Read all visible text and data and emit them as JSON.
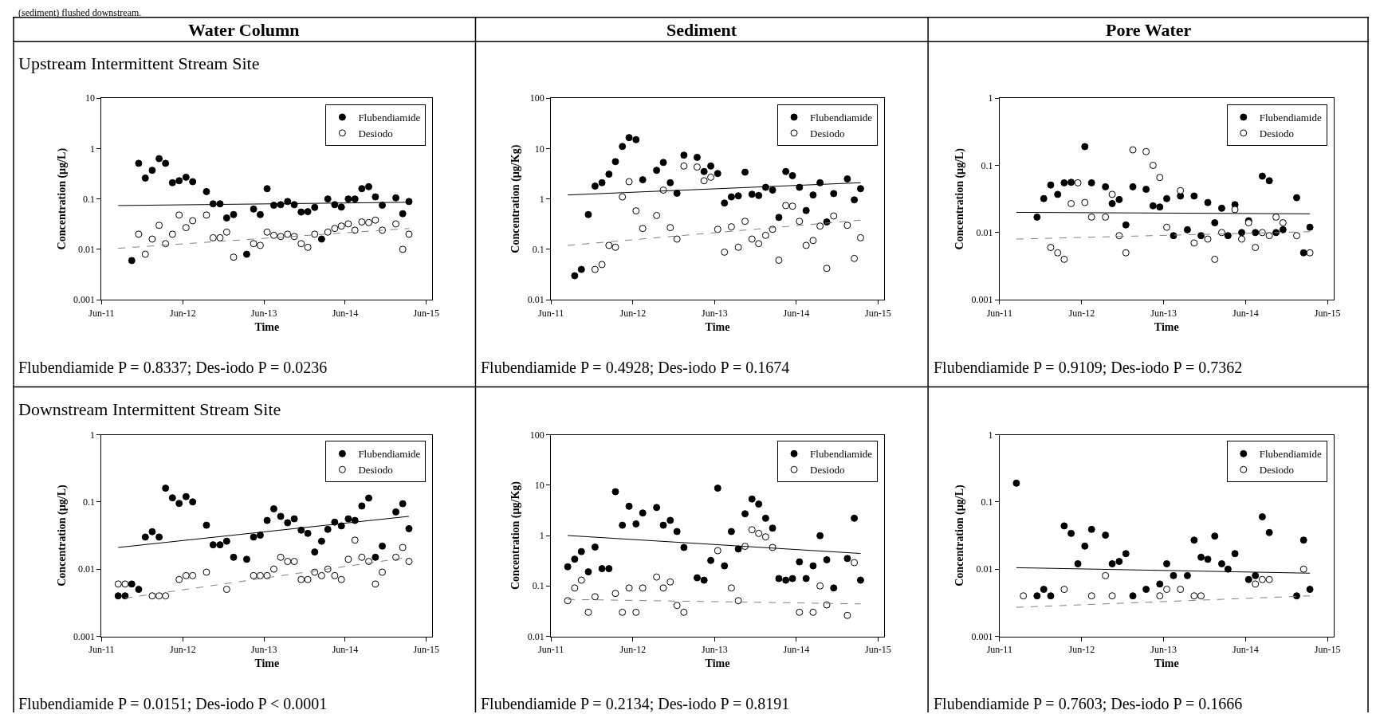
{
  "chart_data": [
    {
      "type": "scatter",
      "title": "Water Column",
      "subtitle": "Upstream Intermittent Stream Site",
      "xlabel": "Time",
      "ylabel": "Concentration (µg/L)",
      "log": "y",
      "legend": "top right",
      "marker": "circle",
      "xlim": [
        "2011-06-01",
        "2015-06-28"
      ],
      "xticks": [
        {
          "value": "2011-06-01",
          "label": "Jun-11"
        },
        {
          "value": "2012-06-01",
          "label": "Jun-12"
        },
        {
          "value": "2013-06-01",
          "label": "Jun-13"
        },
        {
          "value": "2014-06-01",
          "label": "Jun-14"
        },
        {
          "value": "2015-06-01",
          "label": "Jun-15"
        }
      ],
      "ylim": [
        0.001,
        10
      ],
      "yticks": [
        0.001,
        0.01,
        0.1,
        1,
        10
      ],
      "series": [
        {
          "name": "Flubendiamide",
          "color": "#000000",
          "x": [
            "2011-10-15",
            "2011-11-15",
            "2011-12-15",
            "2012-01-15",
            "2012-02-15",
            "2012-03-15",
            "2012-04-15",
            "2012-05-15",
            "2012-06-15",
            "2012-07-15",
            "2012-09-15",
            "2012-10-15",
            "2012-11-15",
            "2012-12-15",
            "2013-01-15",
            "2013-03-15",
            "2013-04-15",
            "2013-05-15",
            "2013-06-15",
            "2013-07-15",
            "2013-08-15",
            "2013-09-15",
            "2013-10-15",
            "2013-11-15",
            "2013-12-15",
            "2014-01-15",
            "2014-02-15",
            "2014-03-15",
            "2014-04-15",
            "2014-05-15",
            "2014-06-15",
            "2014-07-15",
            "2014-08-15",
            "2014-09-15",
            "2014-10-15",
            "2014-11-15",
            "2015-01-15",
            "2015-02-15",
            "2015-03-15"
          ],
          "values": [
            0.006,
            0.51,
            0.26,
            0.37,
            0.63,
            0.51,
            0.21,
            0.23,
            0.27,
            0.22,
            0.14,
            0.08,
            0.08,
            0.042,
            0.049,
            0.008,
            0.063,
            0.049,
            0.16,
            0.075,
            0.077,
            0.089,
            0.077,
            0.055,
            0.056,
            0.068,
            0.016,
            0.1,
            0.077,
            0.069,
            0.1,
            0.1,
            0.16,
            0.175,
            0.11,
            0.075,
            0.105,
            0.051,
            0.089
          ]
        },
        {
          "name": "Desiodo",
          "color": "#ffffff",
          "x": [
            "2011-11-15",
            "2011-12-15",
            "2012-01-15",
            "2012-02-15",
            "2012-03-15",
            "2012-04-15",
            "2012-05-15",
            "2012-06-15",
            "2012-07-15",
            "2012-09-15",
            "2012-10-15",
            "2012-11-15",
            "2012-12-15",
            "2013-01-15",
            "2013-04-15",
            "2013-05-15",
            "2013-06-15",
            "2013-07-15",
            "2013-08-15",
            "2013-09-15",
            "2013-10-15",
            "2013-11-15",
            "2013-12-15",
            "2014-01-15",
            "2014-03-15",
            "2014-04-15",
            "2014-05-15",
            "2014-06-15",
            "2014-07-15",
            "2014-08-15",
            "2014-09-15",
            "2014-10-15",
            "2014-11-15",
            "2015-01-15",
            "2015-02-15",
            "2015-03-15"
          ],
          "values": [
            0.02,
            0.008,
            0.016,
            0.03,
            0.013,
            0.02,
            0.048,
            0.027,
            0.037,
            0.048,
            0.017,
            0.017,
            0.022,
            0.007,
            0.013,
            0.012,
            0.022,
            0.019,
            0.018,
            0.02,
            0.018,
            0.013,
            0.011,
            0.02,
            0.022,
            0.026,
            0.029,
            0.032,
            0.024,
            0.035,
            0.034,
            0.038,
            0.024,
            0.032,
            0.01,
            0.02
          ]
        },
        {
          "type": "line",
          "color": "#000000",
          "x": [
            "2011-08-15",
            "2015-03-15"
          ],
          "values": [
            0.074,
            0.086
          ],
          "marker": "none"
        },
        {
          "type": "line",
          "color": "#808080",
          "line_style": "dashed",
          "x": [
            "2011-08-15",
            "2015-03-15"
          ],
          "values": [
            0.0105,
            0.026
          ],
          "marker": "none"
        }
      ],
      "annotations": [
        "(sediment) flushed downstream.",
        "Flubendiamide P = 0.8337; Des-iodo P = 0.0236"
      ]
    },
    {
      "type": "scatter",
      "title": "Sediment",
      "xlabel": "Time",
      "ylabel": "Concentration (µg/Kg)",
      "log": "y",
      "legend": "top right",
      "marker": "circle",
      "xlim": [
        "2011-06-01",
        "2015-06-28"
      ],
      "xticks": [
        {
          "value": "2011-06-01",
          "label": "Jun-11"
        },
        {
          "value": "2012-06-01",
          "label": "Jun-12"
        },
        {
          "value": "2013-06-01",
          "label": "Jun-13"
        },
        {
          "value": "2014-06-01",
          "label": "Jun-14"
        },
        {
          "value": "2015-06-01",
          "label": "Jun-15"
        }
      ],
      "ylim": [
        0.01,
        100
      ],
      "yticks": [
        0.01,
        0.1,
        1,
        10,
        100
      ],
      "series": [
        {
          "name": "Flubendiamide",
          "color": "#000000",
          "x": [
            "2011-09-15",
            "2011-10-15",
            "2011-11-15",
            "2011-12-15",
            "2012-01-15",
            "2012-02-15",
            "2012-03-15",
            "2012-04-15",
            "2012-05-15",
            "2012-06-15",
            "2012-07-15",
            "2012-09-15",
            "2012-10-15",
            "2012-11-15",
            "2012-12-15",
            "2013-01-15",
            "2013-03-15",
            "2013-04-15",
            "2013-05-15",
            "2013-06-15",
            "2013-07-15",
            "2013-08-15",
            "2013-09-15",
            "2013-10-15",
            "2013-11-15",
            "2013-12-15",
            "2014-01-15",
            "2014-02-15",
            "2014-03-15",
            "2014-04-15",
            "2014-05-15",
            "2014-06-15",
            "2014-07-15",
            "2014-08-15",
            "2014-09-15",
            "2014-10-15",
            "2014-11-15",
            "2015-01-15",
            "2015-02-15",
            "2015-03-15"
          ],
          "values": [
            0.03,
            0.04,
            0.49,
            1.8,
            2.1,
            3.1,
            5.5,
            11,
            16.5,
            15,
            2.4,
            3.7,
            5.3,
            2.1,
            1.3,
            7.4,
            6.7,
            3.5,
            4.5,
            3.2,
            0.83,
            1.1,
            1.15,
            3.4,
            1.24,
            1.17,
            1.7,
            1.5,
            0.43,
            3.5,
            2.9,
            1.7,
            0.59,
            1.2,
            2.1,
            0.35,
            1.28,
            2.5,
            0.96,
            1.6
          ]
        },
        {
          "name": "Desiodo",
          "color": "#ffffff",
          "x": [
            "2011-12-15",
            "2012-01-15",
            "2012-02-15",
            "2012-03-15",
            "2012-04-15",
            "2012-05-15",
            "2012-06-15",
            "2012-07-15",
            "2012-09-15",
            "2012-10-15",
            "2012-11-15",
            "2012-12-15",
            "2013-01-15",
            "2013-03-15",
            "2013-04-15",
            "2013-05-15",
            "2013-06-15",
            "2013-07-15",
            "2013-08-15",
            "2013-09-15",
            "2013-10-15",
            "2013-11-15",
            "2013-12-15",
            "2014-01-15",
            "2014-02-15",
            "2014-03-15",
            "2014-04-15",
            "2014-05-15",
            "2014-06-15",
            "2014-07-15",
            "2014-08-15",
            "2014-09-15",
            "2014-10-15",
            "2014-11-15",
            "2015-01-15",
            "2015-02-15",
            "2015-03-15"
          ],
          "values": [
            0.04,
            0.05,
            0.12,
            0.11,
            1.1,
            2.2,
            0.58,
            0.26,
            0.47,
            1.5,
            0.27,
            0.16,
            4.5,
            4.3,
            2.3,
            2.7,
            0.25,
            0.088,
            0.28,
            0.11,
            0.36,
            0.16,
            0.13,
            0.19,
            0.25,
            0.061,
            0.74,
            0.72,
            0.36,
            0.12,
            0.15,
            0.29,
            0.042,
            0.46,
            0.3,
            0.066,
            0.17
          ]
        },
        {
          "type": "line",
          "color": "#000000",
          "x": [
            "2011-08-15",
            "2015-03-15"
          ],
          "values": [
            1.2,
            2.1
          ],
          "marker": "none"
        },
        {
          "type": "line",
          "color": "#808080",
          "line_style": "dashed",
          "x": [
            "2011-08-15",
            "2015-03-15"
          ],
          "values": [
            0.12,
            0.38
          ],
          "marker": "none"
        }
      ],
      "annotations": [
        "Flubendiamide P = 0.4928; Des-iodo P = 0.1674"
      ]
    },
    {
      "type": "scatter",
      "title": "Pore Water",
      "xlabel": "Time",
      "ylabel": "Concentration (µg/L)",
      "log": "y",
      "legend": "top right",
      "marker": "circle",
      "xlim": [
        "2011-06-01",
        "2015-06-28"
      ],
      "xticks": [
        {
          "value": "2011-06-01",
          "label": "Jun-11"
        },
        {
          "value": "2012-06-01",
          "label": "Jun-12"
        },
        {
          "value": "2013-06-01",
          "label": "Jun-13"
        },
        {
          "value": "2014-06-01",
          "label": "Jun-14"
        },
        {
          "value": "2015-06-01",
          "label": "Jun-15"
        }
      ],
      "ylim": [
        0.001,
        1
      ],
      "yticks": [
        0.001,
        0.01,
        0.1,
        1
      ],
      "series": [
        {
          "name": "Flubendiamide",
          "color": "#000000",
          "x": [
            "2011-11-15",
            "2011-12-15",
            "2012-01-15",
            "2012-02-15",
            "2012-03-15",
            "2012-04-15",
            "2012-06-15",
            "2012-07-15",
            "2012-09-15",
            "2012-10-15",
            "2012-11-15",
            "2012-12-15",
            "2013-01-15",
            "2013-03-15",
            "2013-04-15",
            "2013-05-15",
            "2013-06-15",
            "2013-07-15",
            "2013-08-15",
            "2013-09-15",
            "2013-10-15",
            "2013-11-15",
            "2013-12-15",
            "2014-01-15",
            "2014-02-15",
            "2014-03-15",
            "2014-04-15",
            "2014-05-15",
            "2014-06-15",
            "2014-07-15",
            "2014-08-15",
            "2014-09-15",
            "2014-10-15",
            "2014-11-15",
            "2015-01-15",
            "2015-02-15",
            "2015-03-15"
          ],
          "values": [
            0.017,
            0.032,
            0.051,
            0.037,
            0.055,
            0.056,
            0.19,
            0.055,
            0.048,
            0.027,
            0.031,
            0.013,
            0.048,
            0.044,
            0.025,
            0.024,
            0.032,
            0.009,
            0.035,
            0.011,
            0.035,
            0.009,
            0.028,
            0.014,
            0.023,
            0.009,
            0.026,
            0.01,
            0.015,
            0.01,
            0.069,
            0.059,
            0.01,
            0.011,
            0.033,
            0.005,
            0.012
          ]
        },
        {
          "name": "Desiodo",
          "color": "#ffffff",
          "x": [
            "2012-01-15",
            "2012-02-15",
            "2012-03-15",
            "2012-04-15",
            "2012-05-15",
            "2012-06-15",
            "2012-07-15",
            "2012-09-15",
            "2012-10-15",
            "2012-11-15",
            "2012-12-15",
            "2013-01-15",
            "2013-03-15",
            "2013-04-15",
            "2013-05-15",
            "2013-06-15",
            "2013-08-15",
            "2013-10-15",
            "2013-12-15",
            "2014-01-15",
            "2014-02-15",
            "2014-04-15",
            "2014-05-15",
            "2014-06-15",
            "2014-07-15",
            "2014-08-15",
            "2014-09-15",
            "2014-10-15",
            "2014-11-15",
            "2015-01-15",
            "2015-03-15"
          ],
          "values": [
            0.006,
            0.005,
            0.004,
            0.027,
            0.055,
            0.028,
            0.017,
            0.017,
            0.037,
            0.009,
            0.005,
            0.17,
            0.16,
            0.1,
            0.066,
            0.012,
            0.042,
            0.007,
            0.008,
            0.004,
            0.01,
            0.022,
            0.008,
            0.014,
            0.006,
            0.01,
            0.009,
            0.017,
            0.014,
            0.009,
            0.005
          ]
        },
        {
          "type": "line",
          "color": "#000000",
          "x": [
            "2011-08-15",
            "2015-03-15"
          ],
          "values": [
            0.02,
            0.019
          ],
          "marker": "none"
        },
        {
          "type": "line",
          "color": "#808080",
          "line_style": "dashed",
          "x": [
            "2011-08-15",
            "2015-03-15"
          ],
          "values": [
            0.008,
            0.0103
          ],
          "marker": "none"
        }
      ],
      "annotations": [
        "Flubendiamide P = 0.9109; Des-iodo P = 0.7362"
      ]
    },
    {
      "type": "scatter",
      "subtitle": "Downstream Intermittent Stream Site",
      "xlabel": "Time",
      "ylabel": "Concentration (µg/L)",
      "log": "y",
      "legend": "top right",
      "marker": "circle",
      "xlim": [
        "2011-06-01",
        "2015-06-28"
      ],
      "xticks": [
        {
          "value": "2011-06-01",
          "label": "Jun-11"
        },
        {
          "value": "2012-06-01",
          "label": "Jun-12"
        },
        {
          "value": "2013-06-01",
          "label": "Jun-13"
        },
        {
          "value": "2014-06-01",
          "label": "Jun-14"
        },
        {
          "value": "2015-06-01",
          "label": "Jun-15"
        }
      ],
      "ylim": [
        0.001,
        1
      ],
      "yticks": [
        0.001,
        0.01,
        0.1,
        1
      ],
      "series": [
        {
          "name": "Flubendiamide",
          "color": "#000000",
          "x": [
            "2011-08-15",
            "2011-09-15",
            "2011-10-15",
            "2011-11-15",
            "2011-12-15",
            "2012-01-15",
            "2012-02-15",
            "2012-03-15",
            "2012-04-15",
            "2012-05-15",
            "2012-06-15",
            "2012-07-15",
            "2012-09-15",
            "2012-10-15",
            "2012-11-15",
            "2012-12-15",
            "2013-01-15",
            "2013-03-15",
            "2013-04-15",
            "2013-05-15",
            "2013-06-15",
            "2013-07-15",
            "2013-08-15",
            "2013-09-15",
            "2013-10-15",
            "2013-11-15",
            "2013-12-15",
            "2014-01-15",
            "2014-02-15",
            "2014-03-15",
            "2014-04-15",
            "2014-05-15",
            "2014-06-15",
            "2014-07-15",
            "2014-08-15",
            "2014-09-15",
            "2014-10-15",
            "2014-11-15",
            "2015-01-15",
            "2015-02-15",
            "2015-03-15"
          ],
          "values": [
            0.004,
            0.004,
            0.006,
            0.005,
            0.03,
            0.036,
            0.03,
            0.16,
            0.115,
            0.095,
            0.12,
            0.1,
            0.045,
            0.023,
            0.023,
            0.026,
            0.015,
            0.014,
            0.03,
            0.032,
            0.053,
            0.079,
            0.061,
            0.049,
            0.056,
            0.038,
            0.034,
            0.018,
            0.026,
            0.039,
            0.05,
            0.044,
            0.056,
            0.053,
            0.087,
            0.114,
            0.015,
            0.022,
            0.071,
            0.094,
            0.04
          ]
        },
        {
          "name": "Desiodo",
          "color": "#ffffff",
          "x": [
            "2011-08-15",
            "2011-09-15",
            "2012-01-15",
            "2012-02-15",
            "2012-03-15",
            "2012-05-15",
            "2012-06-15",
            "2012-07-15",
            "2012-09-15",
            "2012-12-15",
            "2013-04-15",
            "2013-05-15",
            "2013-06-15",
            "2013-07-15",
            "2013-08-15",
            "2013-09-15",
            "2013-10-15",
            "2013-11-15",
            "2013-12-15",
            "2014-01-15",
            "2014-02-15",
            "2014-03-15",
            "2014-04-15",
            "2014-05-15",
            "2014-06-15",
            "2014-07-15",
            "2014-08-15",
            "2014-09-15",
            "2014-10-15",
            "2014-11-15",
            "2015-01-15",
            "2015-02-15",
            "2015-03-15"
          ],
          "values": [
            0.006,
            0.006,
            0.004,
            0.004,
            0.004,
            0.007,
            0.008,
            0.008,
            0.009,
            0.005,
            0.008,
            0.008,
            0.008,
            0.01,
            0.015,
            0.013,
            0.013,
            0.007,
            0.007,
            0.009,
            0.008,
            0.01,
            0.008,
            0.007,
            0.014,
            0.027,
            0.015,
            0.013,
            0.006,
            0.009,
            0.015,
            0.021,
            0.013
          ]
        },
        {
          "type": "line",
          "color": "#000000",
          "x": [
            "2011-08-15",
            "2015-03-15"
          ],
          "values": [
            0.021,
            0.061
          ],
          "marker": "none"
        },
        {
          "type": "line",
          "color": "#808080",
          "line_style": "dashed",
          "x": [
            "2011-09-15",
            "2015-03-15"
          ],
          "values": [
            0.0037,
            0.015
          ],
          "marker": "none"
        }
      ],
      "annotations": [
        "Flubendiamide P = 0.0151; Des-iodo P < 0.0001"
      ]
    },
    {
      "type": "scatter",
      "xlabel": "Time",
      "ylabel": "Concentration (µg/Kg)",
      "log": "y",
      "legend": "top right",
      "marker": "circle",
      "xlim": [
        "2011-06-01",
        "2015-06-28"
      ],
      "xticks": [
        {
          "value": "2011-06-01",
          "label": "Jun-11"
        },
        {
          "value": "2012-06-01",
          "label": "Jun-12"
        },
        {
          "value": "2013-06-01",
          "label": "Jun-13"
        },
        {
          "value": "2014-06-01",
          "label": "Jun-14"
        },
        {
          "value": "2015-06-01",
          "label": "Jun-15"
        }
      ],
      "ylim": [
        0.01,
        100
      ],
      "yticks": [
        0.01,
        0.1,
        1,
        10,
        100
      ],
      "series": [
        {
          "name": "Flubendiamide",
          "color": "#000000",
          "x": [
            "2011-08-15",
            "2011-09-15",
            "2011-10-15",
            "2011-11-15",
            "2011-12-15",
            "2012-01-15",
            "2012-02-15",
            "2012-03-15",
            "2012-04-15",
            "2012-05-15",
            "2012-06-15",
            "2012-07-15",
            "2012-09-15",
            "2012-10-15",
            "2012-11-15",
            "2012-12-15",
            "2013-01-15",
            "2013-03-15",
            "2013-04-15",
            "2013-05-15",
            "2013-06-15",
            "2013-07-15",
            "2013-08-15",
            "2013-09-15",
            "2013-10-15",
            "2013-11-15",
            "2013-12-15",
            "2014-01-15",
            "2014-02-15",
            "2014-03-15",
            "2014-04-15",
            "2014-05-15",
            "2014-06-15",
            "2014-07-15",
            "2014-08-15",
            "2014-09-15",
            "2014-10-15",
            "2014-11-15",
            "2015-01-15",
            "2015-02-15",
            "2015-03-15"
          ],
          "values": [
            0.24,
            0.34,
            0.48,
            0.19,
            0.59,
            0.22,
            0.22,
            7.4,
            1.6,
            3.8,
            1.7,
            2.8,
            3.6,
            1.6,
            2.0,
            1.2,
            0.58,
            0.145,
            0.13,
            0.32,
            8.7,
            0.25,
            1.2,
            0.54,
            2.7,
            5.3,
            4.2,
            2.2,
            1.4,
            0.14,
            0.13,
            0.14,
            0.3,
            0.14,
            0.25,
            0.99,
            0.33,
            0.091,
            0.35,
            2.2,
            0.13
          ]
        },
        {
          "name": "Desiodo",
          "color": "#ffffff",
          "x": [
            "2011-08-15",
            "2011-09-15",
            "2011-10-15",
            "2011-11-15",
            "2011-12-15",
            "2012-03-15",
            "2012-04-15",
            "2012-05-15",
            "2012-06-15",
            "2012-07-15",
            "2012-09-15",
            "2012-10-15",
            "2012-11-15",
            "2012-12-15",
            "2013-01-15",
            "2013-06-15",
            "2013-08-15",
            "2013-09-15",
            "2013-10-15",
            "2013-11-15",
            "2013-12-15",
            "2014-01-15",
            "2014-02-15",
            "2014-06-15",
            "2014-08-15",
            "2014-09-15",
            "2014-10-15",
            "2015-01-15",
            "2015-02-15"
          ],
          "values": [
            0.051,
            0.091,
            0.13,
            0.03,
            0.061,
            0.071,
            0.03,
            0.091,
            0.03,
            0.091,
            0.15,
            0.091,
            0.12,
            0.041,
            0.03,
            0.5,
            0.091,
            0.051,
            0.61,
            1.3,
            1.1,
            0.94,
            0.58,
            0.03,
            0.03,
            0.1,
            0.042,
            0.026,
            0.29
          ]
        },
        {
          "type": "line",
          "color": "#000000",
          "x": [
            "2011-08-15",
            "2015-03-15"
          ],
          "values": [
            1.0,
            0.44
          ],
          "marker": "none"
        },
        {
          "type": "line",
          "color": "#808080",
          "line_style": "dashed",
          "x": [
            "2011-08-15",
            "2015-03-15"
          ],
          "values": [
            0.054,
            0.044
          ],
          "marker": "none"
        }
      ],
      "annotations": [
        "Flubendiamide P = 0.2134; Des-iodo P = 0.8191"
      ]
    },
    {
      "type": "scatter",
      "xlabel": "Time",
      "ylabel": "Concentration (µg/L)",
      "log": "y",
      "legend": "top right",
      "marker": "circle",
      "xlim": [
        "2011-06-01",
        "2015-06-28"
      ],
      "xticks": [
        {
          "value": "2011-06-01",
          "label": "Jun-11"
        },
        {
          "value": "2012-06-01",
          "label": "Jun-12"
        },
        {
          "value": "2013-06-01",
          "label": "Jun-13"
        },
        {
          "value": "2014-06-01",
          "label": "Jun-14"
        },
        {
          "value": "2015-06-01",
          "label": "Jun-15"
        }
      ],
      "ylim": [
        0.001,
        1
      ],
      "yticks": [
        0.001,
        0.01,
        0.1,
        1
      ],
      "series": [
        {
          "name": "Flubendiamide",
          "color": "#000000",
          "x": [
            "2011-08-15",
            "2011-11-15",
            "2011-12-15",
            "2012-01-15",
            "2012-03-15",
            "2012-04-15",
            "2012-05-15",
            "2012-06-15",
            "2012-07-15",
            "2012-09-15",
            "2012-10-15",
            "2012-11-15",
            "2012-12-15",
            "2013-01-15",
            "2013-03-15",
            "2013-05-15",
            "2013-06-15",
            "2013-07-15",
            "2013-09-15",
            "2013-10-15",
            "2013-11-15",
            "2013-12-15",
            "2014-01-15",
            "2014-02-15",
            "2014-03-15",
            "2014-04-15",
            "2014-06-15",
            "2014-07-15",
            "2014-08-15",
            "2014-09-15",
            "2015-01-15",
            "2015-02-15",
            "2015-03-15"
          ],
          "values": [
            0.19,
            0.004,
            0.005,
            0.004,
            0.044,
            0.034,
            0.012,
            0.022,
            0.039,
            0.032,
            0.012,
            0.013,
            0.017,
            0.004,
            0.005,
            0.006,
            0.012,
            0.008,
            0.008,
            0.027,
            0.015,
            0.014,
            0.031,
            0.012,
            0.01,
            0.017,
            0.007,
            0.008,
            0.06,
            0.035,
            0.004,
            0.027,
            0.005
          ]
        },
        {
          "name": "Desiodo",
          "color": "#ffffff",
          "x": [
            "2011-09-15",
            "2012-03-15",
            "2012-07-15",
            "2012-09-15",
            "2012-10-15",
            "2013-05-15",
            "2013-06-15",
            "2013-08-15",
            "2013-10-15",
            "2013-11-15",
            "2014-07-15",
            "2014-08-15",
            "2014-09-15",
            "2015-02-15"
          ],
          "values": [
            0.004,
            0.005,
            0.004,
            0.008,
            0.004,
            0.004,
            0.005,
            0.005,
            0.004,
            0.004,
            0.006,
            0.007,
            0.007,
            0.01
          ]
        },
        {
          "type": "line",
          "color": "#000000",
          "x": [
            "2011-08-15",
            "2015-03-15"
          ],
          "values": [
            0.0105,
            0.0087
          ],
          "marker": "none"
        },
        {
          "type": "line",
          "color": "#808080",
          "line_style": "dashed",
          "x": [
            "2011-08-15",
            "2015-03-15"
          ],
          "values": [
            0.0027,
            0.004
          ],
          "marker": "none"
        }
      ],
      "annotations": [
        "Flubendiamide P = 0.7603; Des-iodo P = 0.1666"
      ]
    }
  ]
}
